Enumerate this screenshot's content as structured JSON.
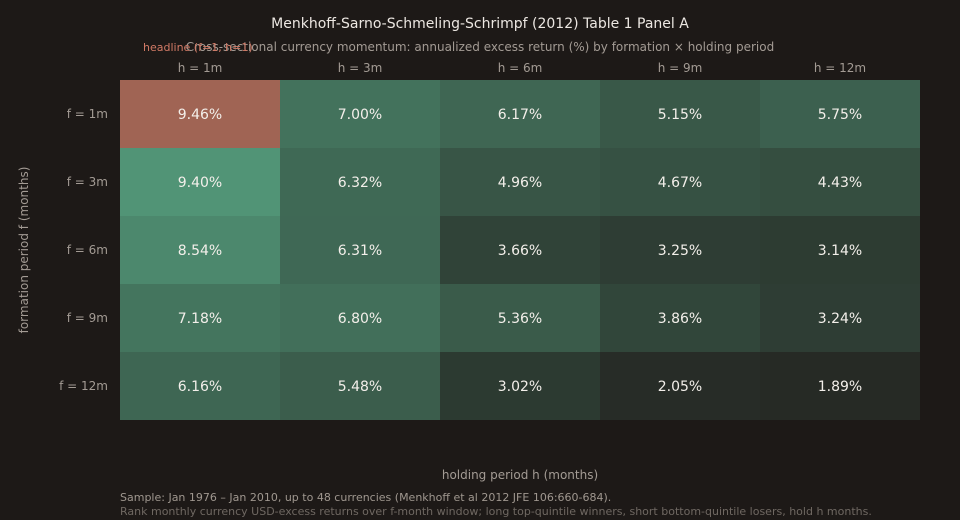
{
  "chart_data": {
    "type": "heatmap",
    "title": "Menkhoff-Sarno-Schmeling-Schrimpf (2012) Table 1 Panel A",
    "subtitle": "Cross-sectional currency momentum: annualized excess return (%) by formation × holding period",
    "headline_tag": "headline (f=1, h=1)",
    "xlabel": "holding period h (months)",
    "ylabel": "formation period f (months)",
    "x_categories": [
      "h = 1m",
      "h = 3m",
      "h = 6m",
      "h = 9m",
      "h = 12m"
    ],
    "y_categories": [
      "f = 1m",
      "f = 3m",
      "f = 6m",
      "f = 9m",
      "f = 12m"
    ],
    "values": [
      [
        9.46,
        7.0,
        6.17,
        5.15,
        5.75
      ],
      [
        9.4,
        6.32,
        4.96,
        4.67,
        4.43
      ],
      [
        8.54,
        6.31,
        3.66,
        3.25,
        3.14
      ],
      [
        7.18,
        6.8,
        5.36,
        3.86,
        3.24
      ],
      [
        6.16,
        5.48,
        3.02,
        2.05,
        1.89
      ]
    ],
    "value_suffix": "%",
    "highlight_cell": {
      "row": 0,
      "col": 0,
      "color": "#a06454"
    },
    "color_scale": {
      "min": 1.89,
      "max": 9.4,
      "low_color": "#262a25",
      "high_color": "#519476"
    },
    "footnotes": [
      "Sample: Jan 1976 – Jan 2010, up to 48 currencies (Menkhoff et al 2012 JFE 106:660-684).",
      "Rank monthly currency USD-excess returns over f-month window; long top-quintile winners, short bottom-quintile losers, hold h months."
    ]
  }
}
